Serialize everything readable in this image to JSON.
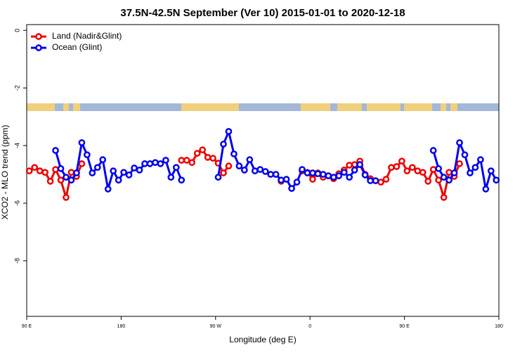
{
  "chart_data": {
    "type": "line",
    "title": "37.5N-42.5N September (Ver 10)   2015-01-01 to 2020-12-18",
    "x_label": "Longitude (deg E)",
    "y_label": "XCO2 - MLO trend (ppm)",
    "x": [
      92.5,
      97.5,
      102.5,
      107.5,
      112.5,
      117.5,
      122.5,
      127.5,
      132.5,
      137.5,
      142.5,
      147.5,
      152.5,
      157.5,
      162.5,
      167.5,
      172.5,
      177.5,
      182.5,
      187.5,
      192.5,
      197.5,
      202.5,
      207.5,
      212.5,
      217.5,
      222.5,
      227.5,
      232.5,
      237.5,
      242.5,
      247.5,
      252.5,
      257.5,
      262.5,
      267.5,
      272.5,
      277.5,
      282.5,
      287.5,
      292.5,
      297.5,
      302.5,
      307.5,
      312.5,
      317.5,
      322.5,
      327.5,
      332.5,
      337.5,
      342.5,
      347.5,
      352.5,
      357.5,
      362.5,
      367.5,
      372.5,
      377.5,
      382.5,
      387.5,
      392.5,
      397.5,
      402.5,
      407.5,
      412.5,
      417.5,
      422.5,
      427.5,
      432.5,
      437.5,
      442.5,
      447.5,
      452.5,
      457.5,
      462.5,
      467.5,
      472.5,
      477.5,
      482.5,
      487.5,
      492.5,
      497.5,
      502.5,
      507.5,
      512.5,
      517.5,
      522.5,
      527.5,
      532.5,
      537.5
    ],
    "series": [
      {
        "name": "Land (Nadir&Glint)",
        "color": "#ee0000",
        "values": [
          -4.88,
          -4.76,
          -4.88,
          -4.93,
          -5.24,
          -4.83,
          -5.2,
          -5.8,
          -4.93,
          -5.07,
          -4.63,
          null,
          null,
          null,
          null,
          null,
          null,
          null,
          null,
          null,
          null,
          null,
          null,
          null,
          null,
          null,
          null,
          null,
          null,
          -4.51,
          -4.51,
          -4.59,
          -4.27,
          -4.15,
          -4.41,
          -4.44,
          -4.61,
          -4.95,
          -4.71,
          null,
          null,
          null,
          null,
          null,
          null,
          null,
          null,
          null,
          -5.24,
          null,
          null,
          null,
          -4.88,
          -4.93,
          -5.17,
          -4.95,
          -5.1,
          -5.05,
          -5.15,
          -4.98,
          -4.85,
          -4.68,
          -4.66,
          -4.54,
          -5.0,
          -5.15,
          -5.22,
          -5.27,
          -5.17,
          -4.76,
          -4.73,
          -4.54,
          -4.88,
          -4.76,
          -4.88,
          -4.93,
          -5.24,
          -4.83,
          -5.2,
          -5.8,
          -4.93,
          -5.07,
          -4.63,
          null,
          null,
          null,
          null,
          null,
          null,
          null
        ]
      },
      {
        "name": "Ocean (Glint)",
        "color": "#0000ee",
        "values": [
          null,
          null,
          null,
          null,
          null,
          -4.17,
          -4.8,
          -5.1,
          -5.2,
          -4.95,
          -3.9,
          -4.32,
          -4.95,
          -4.76,
          -4.49,
          -5.51,
          -4.88,
          -5.2,
          -4.93,
          -5.02,
          -4.78,
          -4.85,
          -4.63,
          -4.63,
          -4.59,
          -4.63,
          -4.51,
          -5.1,
          -4.76,
          -5.2,
          null,
          null,
          null,
          null,
          null,
          null,
          -5.1,
          -3.95,
          -3.51,
          -4.29,
          -4.71,
          -4.85,
          -4.49,
          -4.88,
          -4.83,
          -4.9,
          -5.0,
          -5.0,
          -5.2,
          -5.17,
          -5.49,
          -5.27,
          -4.83,
          -4.95,
          -4.95,
          -4.98,
          -5.0,
          -5.05,
          -5.1,
          -5.05,
          -4.93,
          -5.1,
          -4.85,
          -4.66,
          -5.02,
          -5.22,
          -5.22,
          null,
          null,
          null,
          null,
          null,
          null,
          null,
          null,
          null,
          null,
          -4.17,
          -4.8,
          -5.1,
          -5.2,
          -4.95,
          -3.9,
          -4.32,
          -4.95,
          -4.76,
          -4.49,
          -5.51,
          -4.88,
          -5.2
        ]
      }
    ],
    "xlim": [
      90,
      540
    ],
    "xticks": [
      {
        "value": 90,
        "label": "90 E"
      },
      {
        "value": 180,
        "label": "180"
      },
      {
        "value": 270,
        "label": "90 W"
      },
      {
        "value": 360,
        "label": "0"
      },
      {
        "value": 450,
        "label": "90 E"
      },
      {
        "value": 540,
        "label": "180"
      }
    ],
    "ylim": [
      -9.93,
      0.2
    ],
    "yticks": [
      0,
      -2,
      -4,
      -6,
      -8
    ],
    "legend": "top-left"
  }
}
